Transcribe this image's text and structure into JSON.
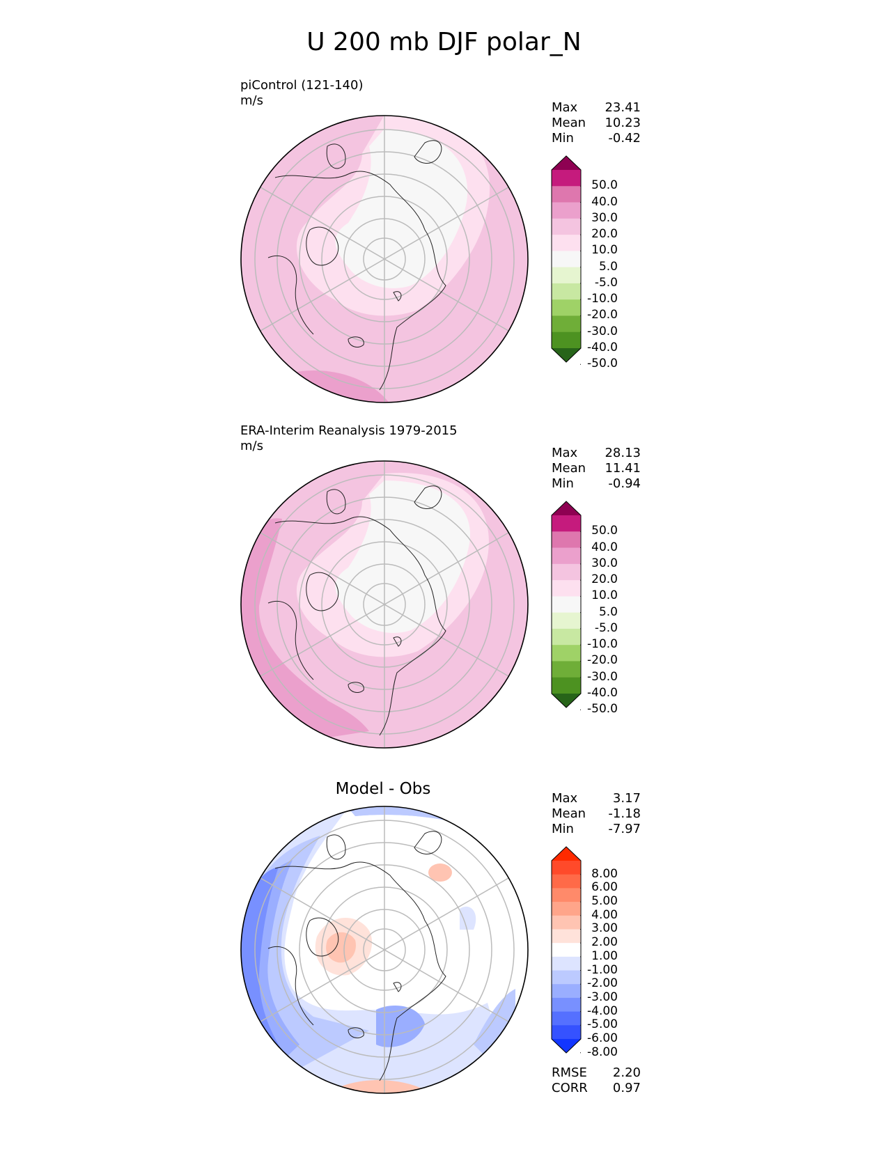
{
  "figure": {
    "title": "U 200 mb DJF polar_N"
  },
  "panels": [
    {
      "title_line1": "piControl (121-140)",
      "title_line2": "m/s",
      "stats": [
        {
          "label": "Max",
          "value": "23.41"
        },
        {
          "label": "Mean",
          "value": "10.23"
        },
        {
          "label": "Min",
          "value": "-0.42"
        }
      ],
      "colorbar": {
        "labels": [
          "50.0",
          "40.0",
          "30.0",
          "20.0",
          "10.0",
          "5.0",
          "-5.0",
          "-10.0",
          "-20.0",
          "-30.0",
          "-40.0",
          "-50.0"
        ],
        "colors": [
          "#8e0152",
          "#c51b7d",
          "#de77ae",
          "#eba0cc",
          "#f4c4e0",
          "#fde0ef",
          "#f7f7f7",
          "#e6f5d0",
          "#c8e8a2",
          "#9fd267",
          "#6fae38",
          "#4d9221",
          "#276419"
        ]
      }
    },
    {
      "title_line1": "ERA-Interim Reanalysis 1979-2015",
      "title_line2": "m/s",
      "stats": [
        {
          "label": "Max",
          "value": "28.13"
        },
        {
          "label": "Mean",
          "value": "11.41"
        },
        {
          "label": "Min",
          "value": "-0.94"
        }
      ],
      "colorbar": {
        "labels": [
          "50.0",
          "40.0",
          "30.0",
          "20.0",
          "10.0",
          "5.0",
          "-5.0",
          "-10.0",
          "-20.0",
          "-30.0",
          "-40.0",
          "-50.0"
        ],
        "colors": [
          "#8e0152",
          "#c51b7d",
          "#de77ae",
          "#eba0cc",
          "#f4c4e0",
          "#fde0ef",
          "#f7f7f7",
          "#e6f5d0",
          "#c8e8a2",
          "#9fd267",
          "#6fae38",
          "#4d9221",
          "#276419"
        ]
      }
    },
    {
      "title": "Model - Obs",
      "stats": [
        {
          "label": "Max",
          "value": "3.17"
        },
        {
          "label": "Mean",
          "value": "-1.18"
        },
        {
          "label": "Min",
          "value": "-7.97"
        }
      ],
      "colorbar": {
        "labels": [
          "8.00",
          "6.00",
          "5.00",
          "4.00",
          "3.00",
          "2.00",
          "1.00",
          "-1.00",
          "-2.00",
          "-3.00",
          "-4.00",
          "-5.00",
          "-6.00",
          "-8.00"
        ],
        "colors": [
          "#ff2a00",
          "#ff4a2a",
          "#ff6a48",
          "#ff8a6a",
          "#ffa58a",
          "#ffc4b2",
          "#ffe2da",
          "#ffffff",
          "#dde4ff",
          "#bccaff",
          "#9aaeff",
          "#7890ff",
          "#5570ff",
          "#3552ff",
          "#1236ff"
        ]
      },
      "metrics": [
        {
          "label": "RMSE",
          "value": "2.20"
        },
        {
          "label": "CORR",
          "value": "0.97"
        }
      ]
    }
  ],
  "field_colors": {
    "neutral": "#f7f7f7",
    "pink_light": "#fde0ef",
    "pink": "#f4c4e0",
    "pink_mid": "#eba0cc",
    "diff_white": "#ffffff",
    "diff_blue1": "#dde4ff",
    "diff_blue2": "#bccaff",
    "diff_blue3": "#9aaeff",
    "diff_blue4": "#7890ff",
    "diff_blue5": "#5570ff",
    "diff_red1": "#ffe2da",
    "diff_red2": "#ffc4b2"
  }
}
